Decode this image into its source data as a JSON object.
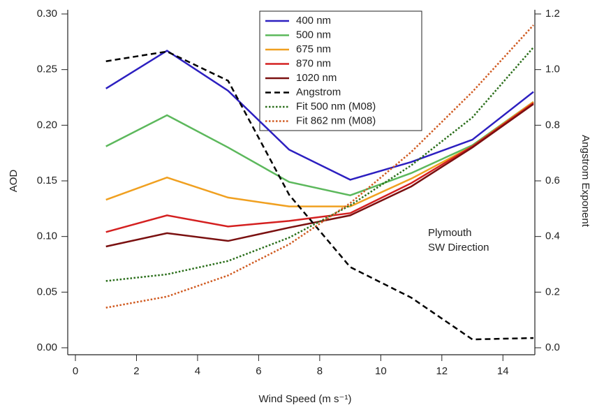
{
  "chart_data": {
    "type": "line",
    "xlabel": "Wind Speed (m s⁻¹)",
    "ylabel": "AOD",
    "y2label": "Angstrom Exponent",
    "annotation": [
      "Plymouth",
      "SW Direction"
    ],
    "x": [
      1,
      3,
      5,
      7,
      9,
      11,
      13,
      15
    ],
    "xlim": [
      0,
      15
    ],
    "xticks": [
      0,
      2,
      4,
      6,
      8,
      10,
      12,
      14
    ],
    "ylim": [
      0,
      0.3
    ],
    "yticks": [
      {
        "value": 0,
        "label": "0.00"
      },
      {
        "value": 0.05,
        "label": "0.05"
      },
      {
        "value": 0.1,
        "label": "0.10"
      },
      {
        "value": 0.15,
        "label": "0.15"
      },
      {
        "value": 0.2,
        "label": "0.20"
      },
      {
        "value": 0.25,
        "label": "0.25"
      },
      {
        "value": 0.3,
        "label": "0.30"
      }
    ],
    "y2lim": [
      0,
      1.2
    ],
    "y2ticks": [
      {
        "value": 0,
        "label": "0.0"
      },
      {
        "value": 0.2,
        "label": "0.2"
      },
      {
        "value": 0.4,
        "label": "0.4"
      },
      {
        "value": 0.6,
        "label": "0.6"
      },
      {
        "value": 0.8,
        "label": "0.8"
      },
      {
        "value": 1,
        "label": "1.0"
      },
      {
        "value": 1.2,
        "label": "1.2"
      }
    ],
    "series": [
      {
        "name": "400 nm",
        "color": "#2c1fc0",
        "style": "solid",
        "values": [
          0.233,
          0.267,
          0.231,
          0.178,
          0.151,
          0.167,
          0.187,
          0.23
        ]
      },
      {
        "name": "500 nm",
        "color": "#5cb85c",
        "style": "solid",
        "values": [
          0.181,
          0.209,
          0.18,
          0.149,
          0.137,
          0.157,
          0.182,
          0.221
        ]
      },
      {
        "name": "675 nm",
        "color": "#f0a020",
        "style": "solid",
        "values": [
          0.133,
          0.153,
          0.135,
          0.127,
          0.127,
          0.152,
          0.181,
          0.221
        ]
      },
      {
        "name": "870 nm",
        "color": "#d42020",
        "style": "solid",
        "values": [
          0.104,
          0.119,
          0.109,
          0.114,
          0.121,
          0.148,
          0.181,
          0.22
        ]
      },
      {
        "name": "1020 nm",
        "color": "#7a1010",
        "style": "solid",
        "values": [
          0.091,
          0.103,
          0.096,
          0.108,
          0.119,
          0.145,
          0.18,
          0.219
        ]
      },
      {
        "name": "Angstrom",
        "color": "#000000",
        "style": "dashed",
        "axis": "y2",
        "values": [
          1.03,
          1.065,
          0.96,
          0.55,
          0.29,
          0.18,
          0.03,
          0.035
        ]
      },
      {
        "name": "Fit 500 nm (M08)",
        "color": "#2a6e1a",
        "style": "dotted",
        "values": [
          0.06,
          0.066,
          0.078,
          0.099,
          0.128,
          0.164,
          0.207,
          0.27
        ]
      },
      {
        "name": "Fit 862 nm (M08)",
        "color": "#d05a20",
        "style": "dotted",
        "values": [
          0.036,
          0.046,
          0.065,
          0.093,
          0.13,
          0.176,
          0.23,
          0.29
        ]
      }
    ]
  }
}
